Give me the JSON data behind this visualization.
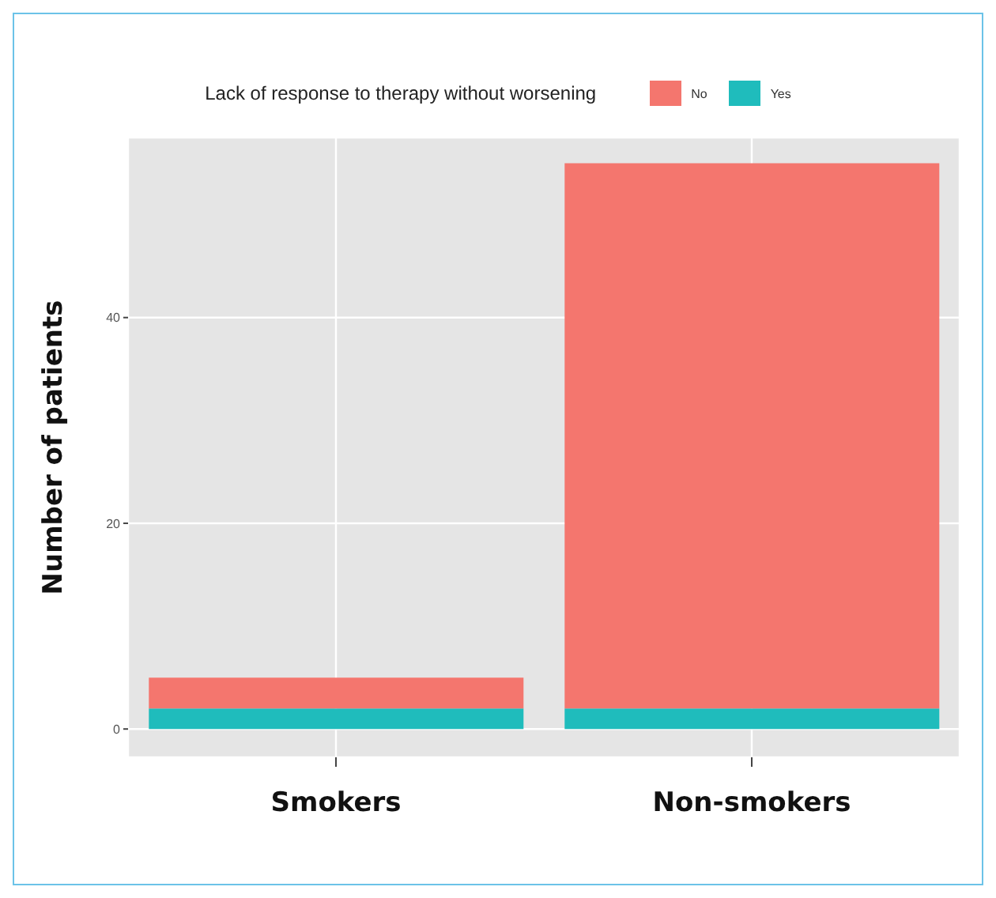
{
  "chart_data": {
    "type": "bar",
    "stacked": true,
    "ylabel": "Number of patients",
    "legend_title": "Lack of response to therapy without worsening",
    "legend": "top",
    "grid": true,
    "categories": [
      "Smokers",
      "Non-smokers"
    ],
    "series": [
      {
        "name": "Yes",
        "color": "#1fbcbc",
        "values": [
          2,
          2
        ]
      },
      {
        "name": "No",
        "color": "#f4766e",
        "values": [
          3,
          53
        ]
      }
    ],
    "ylim": [
      -2.75,
      57.5
    ],
    "yticks": [
      0,
      20,
      40
    ]
  }
}
